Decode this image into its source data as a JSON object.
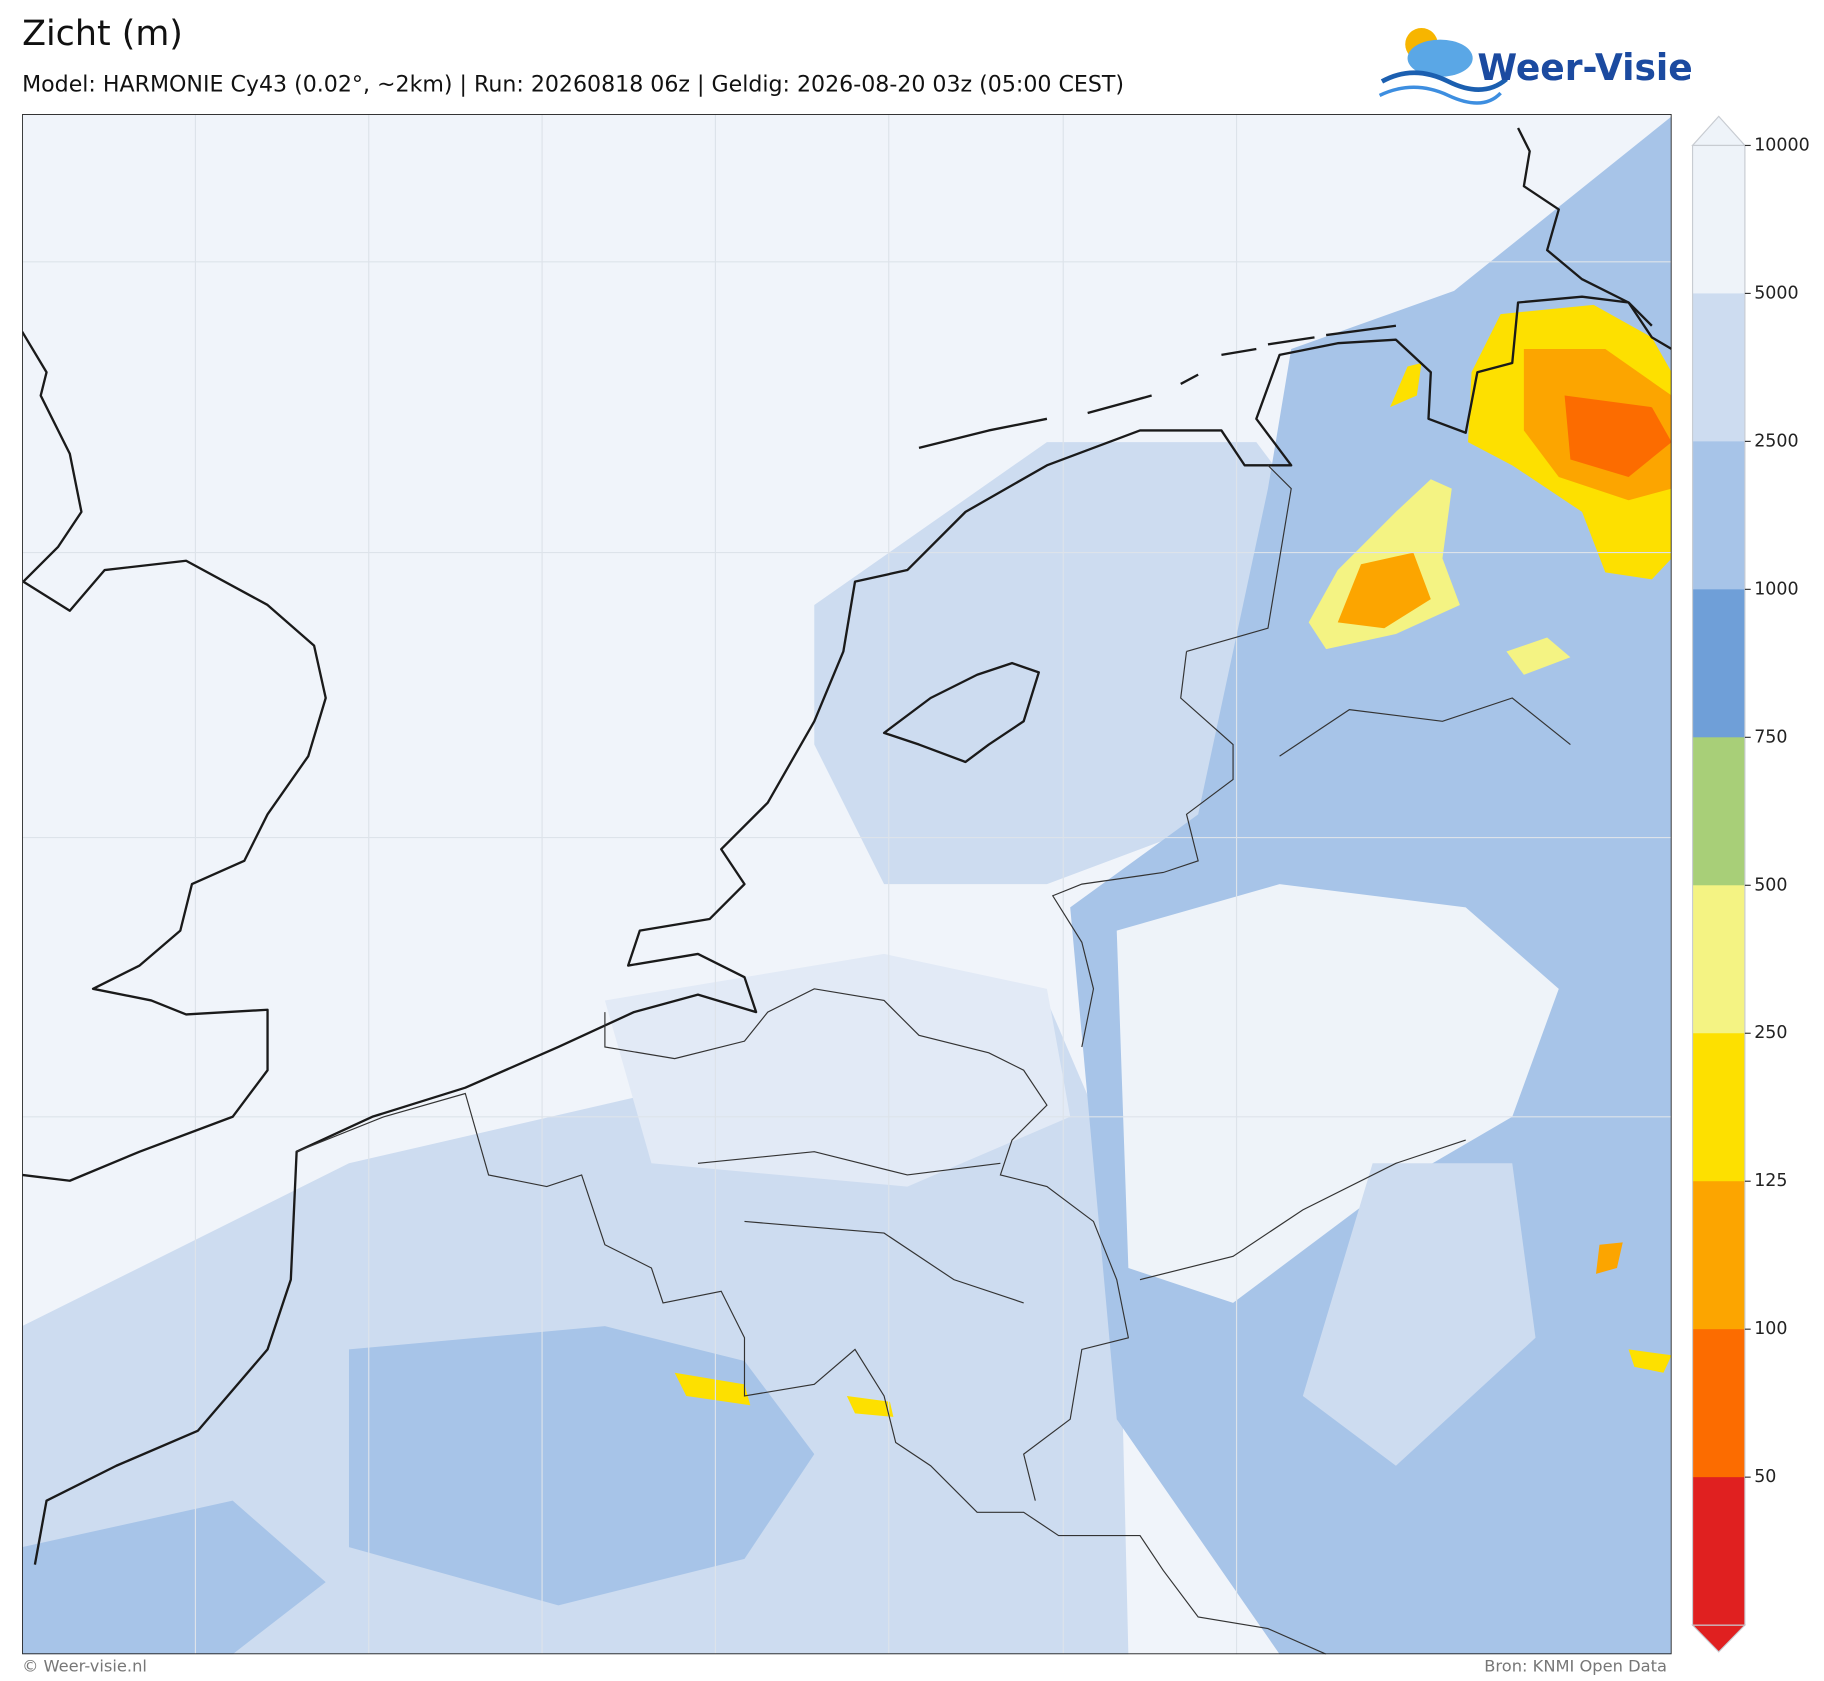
{
  "header": {
    "title": "Zicht (m)",
    "subtitle": "Model: HARMONIE Cy43 (0.02°, ~2km)  |  Run: 20260818 06z  |  Geldig: 2026-08-20 03z (05:00 CEST)",
    "logo": "Weer-Visie"
  },
  "colorbar": {
    "ticks": [
      10000,
      5000,
      2500,
      1000,
      750,
      500,
      250,
      125,
      100,
      50
    ],
    "colors": [
      "#eef3f9",
      "#cddcf0",
      "#a7c4e8",
      "#6f9fd8",
      "#a8cf78",
      "#f4f383",
      "#fde000",
      "#fca500",
      "#fc6c00",
      "#e02020"
    ]
  },
  "footer": {
    "left": "© Weer-visie.nl",
    "right": "Bron: KNMI Open Data"
  }
}
